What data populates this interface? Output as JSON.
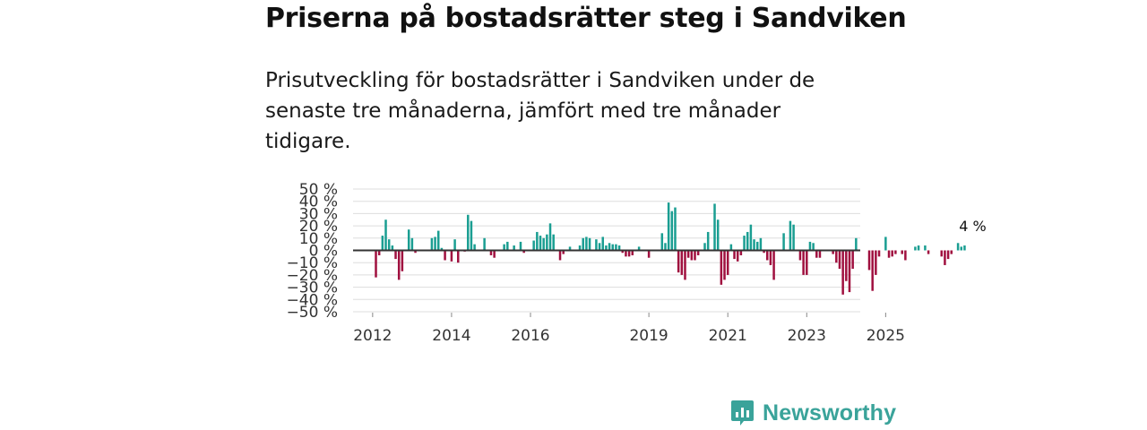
{
  "header": {
    "title": "Priserna på bostadsrätter steg i Sandviken",
    "subtitle": "Prisutveckling för bostadsrätter i Sandviken under de senaste tre månaderna, jämfört med tre månader tidigare."
  },
  "brand": {
    "name": "Newsworthy",
    "icon": "newsworthy-logo-icon"
  },
  "colors": {
    "positive": "#1a9e92",
    "negative": "#a0103f",
    "grid": "#dddddd",
    "zero_line": "#333333",
    "brand": "#3aa39a"
  },
  "chart_data": {
    "type": "bar",
    "title": "Priserna på bostadsrätter steg i Sandviken",
    "xlabel": "",
    "ylabel": "",
    "ylim": [
      -50,
      50
    ],
    "yticks": [
      -50,
      -40,
      -30,
      -20,
      -10,
      0,
      10,
      20,
      30,
      40,
      50
    ],
    "ytick_labels": [
      "−50 %",
      "−40 %",
      "−30 %",
      "−20 %",
      "−10 %",
      "0 %",
      "10 %",
      "20 %",
      "30 %",
      "40 %",
      "50 %"
    ],
    "x_start_month": "2011-11",
    "xticks": [
      {
        "label": "2012",
        "month_index": 2
      },
      {
        "label": "2014",
        "month_index": 26
      },
      {
        "label": "2016",
        "month_index": 50
      },
      {
        "label": "2019",
        "month_index": 86
      },
      {
        "label": "2021",
        "month_index": 110
      },
      {
        "label": "2023",
        "month_index": 134
      },
      {
        "label": "2025",
        "month_index": 158
      }
    ],
    "values": [
      0,
      0,
      0,
      -22,
      -4,
      12,
      25,
      9,
      4,
      -7,
      -24,
      -17,
      0,
      17,
      10,
      -2,
      0,
      0,
      0,
      0,
      10,
      11,
      16,
      2,
      -8,
      0,
      -9,
      9,
      -10,
      0,
      -1,
      29,
      24,
      5,
      0,
      0,
      10,
      0,
      -4,
      -6,
      0,
      0,
      5,
      7,
      0,
      4,
      0,
      7,
      -2,
      0,
      0,
      8,
      15,
      12,
      10,
      13,
      22,
      13,
      0,
      -8,
      -3,
      0,
      3,
      0,
      0,
      4,
      10,
      11,
      10,
      0,
      9,
      6,
      11,
      4,
      6,
      5,
      5,
      4,
      -2,
      -5,
      -5,
      -4,
      0,
      3,
      0,
      0,
      -6,
      0,
      0,
      0,
      14,
      6,
      39,
      32,
      35,
      -18,
      -20,
      -24,
      -6,
      -8,
      -8,
      -4,
      0,
      6,
      15,
      0,
      38,
      25,
      -28,
      -24,
      -20,
      5,
      -7,
      -9,
      -4,
      12,
      15,
      21,
      9,
      7,
      10,
      -2,
      -8,
      -12,
      -24,
      0,
      0,
      14,
      0,
      24,
      21,
      0,
      -8,
      -20,
      -20,
      7,
      6,
      -6,
      -6,
      0,
      0,
      0,
      -3,
      -10,
      -15,
      -36,
      -25,
      -34,
      -15,
      10,
      0,
      0,
      0,
      -16,
      -33,
      -20,
      -5,
      0,
      11,
      -6,
      -5,
      -3,
      0,
      -3,
      -8,
      0,
      0,
      3,
      4,
      0,
      4,
      -3,
      0,
      0,
      0,
      -5,
      -12,
      -7,
      -3,
      0,
      6,
      3,
      4
    ],
    "annotations": [
      {
        "text": "4 %",
        "month_index": 185,
        "value": 4
      }
    ]
  }
}
